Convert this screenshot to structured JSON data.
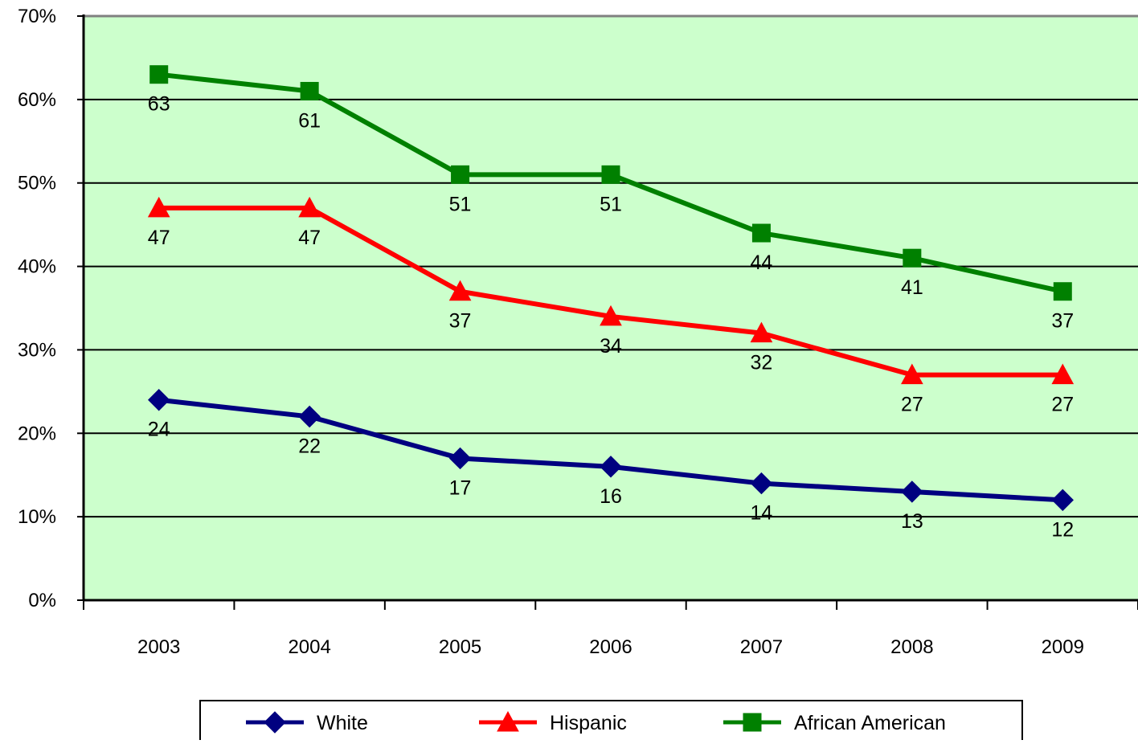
{
  "chart_data": {
    "type": "line",
    "title": "",
    "xlabel": "",
    "ylabel": "",
    "categories": [
      "2003",
      "2004",
      "2005",
      "2006",
      "2007",
      "2008",
      "2009"
    ],
    "y_axis": {
      "min": 0,
      "max": 70,
      "step": 10,
      "tick_labels": [
        "0%",
        "10%",
        "20%",
        "30%",
        "40%",
        "50%",
        "60%",
        "70%"
      ]
    },
    "grid": true,
    "legend_position": "bottom",
    "plot_background": "#ccffcc",
    "series": [
      {
        "name": "White",
        "color": "#000080",
        "marker": "diamond",
        "values": [
          24,
          22,
          17,
          16,
          14,
          13,
          12
        ],
        "labels": [
          "24",
          "22",
          "17",
          "16",
          "14",
          "13",
          "12"
        ]
      },
      {
        "name": "Hispanic",
        "color": "#ff0000",
        "marker": "triangle",
        "values": [
          47,
          47,
          37,
          34,
          32,
          27,
          27
        ],
        "labels": [
          "47",
          "47",
          "37",
          "34",
          "32",
          "27",
          "27"
        ]
      },
      {
        "name": "African American",
        "color": "#008000",
        "marker": "square",
        "values": [
          63,
          61,
          51,
          51,
          44,
          41,
          37
        ],
        "labels": [
          "63",
          "61",
          "51",
          "51",
          "44",
          "41",
          "37"
        ]
      }
    ]
  }
}
